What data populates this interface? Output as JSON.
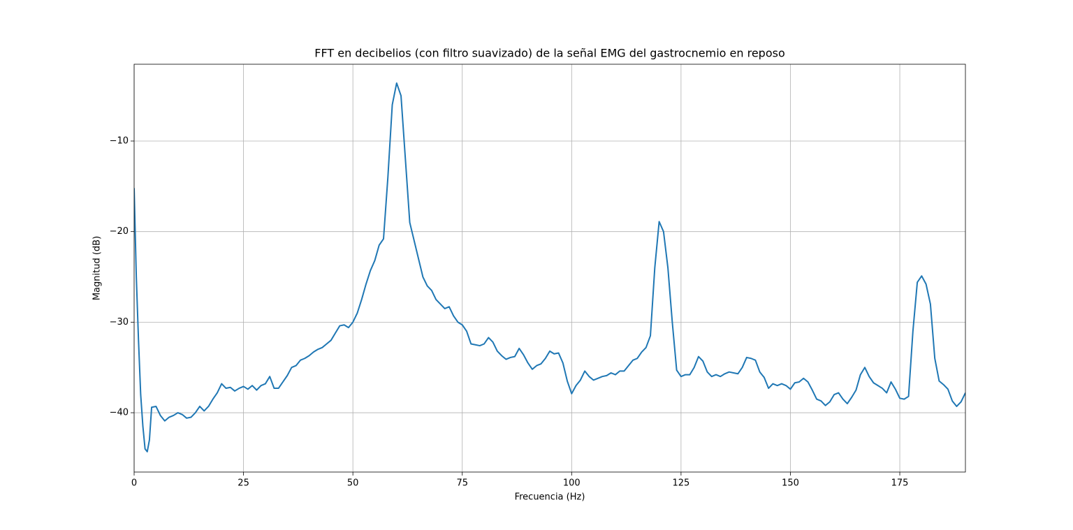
{
  "chart_data": {
    "type": "line",
    "title": "FFT en decibelios (con filtro suavizado) de la señal EMG del gastrocnemio en reposo",
    "xlabel": "Frecuencia (Hz)",
    "ylabel": "Magnitud (dB)",
    "xlim": [
      0,
      190
    ],
    "ylim": [
      -46.55,
      -1.52
    ],
    "xticks": [
      0,
      25,
      50,
      75,
      100,
      125,
      150,
      175
    ],
    "yticks": [
      {
        "value": -40,
        "label": "−40"
      },
      {
        "value": -30,
        "label": "−30"
      },
      {
        "value": -20,
        "label": "−20"
      },
      {
        "value": -10,
        "label": "−10"
      }
    ],
    "grid": true,
    "series": [
      {
        "color": "#1f77b4",
        "x": [
          0,
          0.5,
          1,
          1.5,
          2,
          2.5,
          3,
          3.5,
          4,
          5,
          6,
          7,
          8,
          9,
          10,
          11,
          12,
          13,
          14,
          15,
          16,
          17,
          18,
          19,
          20,
          21,
          22,
          23,
          24,
          25,
          26,
          27,
          28,
          29,
          30,
          31,
          32,
          33,
          34,
          35,
          36,
          37,
          38,
          39,
          40,
          41,
          42,
          43,
          44,
          45,
          46,
          47,
          48,
          49,
          50,
          51,
          52,
          53,
          54,
          55,
          56,
          57,
          58,
          59,
          60,
          61,
          62,
          63,
          64,
          65,
          66,
          67,
          68,
          69,
          70,
          71,
          72,
          73,
          74,
          75,
          76,
          77,
          78,
          79,
          80,
          81,
          82,
          83,
          84,
          85,
          86,
          87,
          88,
          89,
          90,
          91,
          92,
          93,
          94,
          95,
          96,
          97,
          98,
          99,
          100,
          101,
          102,
          103,
          104,
          105,
          106,
          107,
          108,
          109,
          110,
          111,
          112,
          113,
          114,
          115,
          116,
          117,
          118,
          119,
          120,
          121,
          122,
          123,
          124,
          125,
          126,
          127,
          128,
          129,
          130,
          131,
          132,
          133,
          134,
          135,
          136,
          137,
          138,
          139,
          140,
          141,
          142,
          143,
          144,
          145,
          146,
          147,
          148,
          149,
          150,
          151,
          152,
          153,
          154,
          155,
          156,
          157,
          158,
          159,
          160,
          161,
          162,
          163,
          164,
          165,
          166,
          167,
          168,
          169,
          170,
          171,
          172,
          173,
          174,
          175,
          176,
          177,
          178,
          179,
          180,
          181,
          182,
          183,
          184,
          185,
          186,
          187,
          188,
          189,
          190
        ],
        "values": [
          -15.2,
          -25,
          -32,
          -38,
          -41.5,
          -44,
          -44.3,
          -43,
          -39.4,
          -39.3,
          -40.3,
          -40.9,
          -40.5,
          -40.3,
          -40.0,
          -40.2,
          -40.6,
          -40.5,
          -40.0,
          -39.3,
          -39.8,
          -39.3,
          -38.5,
          -37.8,
          -36.8,
          -37.3,
          -37.2,
          -37.6,
          -37.3,
          -37.1,
          -37.4,
          -37.0,
          -37.5,
          -37.0,
          -36.8,
          -36.0,
          -37.3,
          -37.3,
          -36.6,
          -35.9,
          -35.0,
          -34.8,
          -34.2,
          -34.0,
          -33.7,
          -33.3,
          -33.0,
          -32.8,
          -32.4,
          -32.0,
          -31.2,
          -30.4,
          -30.3,
          -30.6,
          -30.0,
          -29.0,
          -27.5,
          -25.8,
          -24.3,
          -23.2,
          -21.5,
          -20.8,
          -14,
          -6,
          -3.6,
          -5,
          -12,
          -19,
          -21,
          -23,
          -25,
          -26,
          -26.5,
          -27.5,
          -28,
          -28.5,
          -28.3,
          -29.3,
          -30,
          -30.3,
          -31,
          -32.4,
          -32.5,
          -32.6,
          -32.4,
          -31.7,
          -32.2,
          -33.2,
          -33.7,
          -34.1,
          -33.9,
          -33.8,
          -32.9,
          -33.6,
          -34.5,
          -35.2,
          -34.8,
          -34.6,
          -34.0,
          -33.2,
          -33.5,
          -33.4,
          -34.5,
          -36.5,
          -37.9,
          -37.0,
          -36.4,
          -35.4,
          -36.0,
          -36.4,
          -36.2,
          -36.0,
          -35.9,
          -35.6,
          -35.8,
          -35.4,
          -35.4,
          -34.8,
          -34.2,
          -34.0,
          -33.3,
          -32.8,
          -31.5,
          -24,
          -18.9,
          -20,
          -24,
          -30,
          -35.3,
          -36,
          -35.8,
          -35.8,
          -35.0,
          -33.8,
          -34.3,
          -35.5,
          -36.0,
          -35.8,
          -36.0,
          -35.7,
          -35.5,
          -35.6,
          -35.7,
          -35.0,
          -33.9,
          -34.0,
          -34.2,
          -35.5,
          -36.1,
          -37.3,
          -36.8,
          -37.0,
          -36.8,
          -37.0,
          -37.4,
          -36.7,
          -36.6,
          -36.2,
          -36.6,
          -37.5,
          -38.5,
          -38.7,
          -39.2,
          -38.8,
          -38.0,
          -37.8,
          -38.5,
          -39.0,
          -38.3,
          -37.5,
          -35.8,
          -35.0,
          -36.0,
          -36.7,
          -37.0,
          -37.3,
          -37.8,
          -36.6,
          -37.4,
          -38.4,
          -38.5,
          -38.2,
          -31,
          -25.6,
          -24.9,
          -25.8,
          -28,
          -34,
          -36.5,
          -36.9,
          -37.4,
          -38.7,
          -39.3,
          -38.8,
          -37.8
        ]
      }
    ]
  }
}
